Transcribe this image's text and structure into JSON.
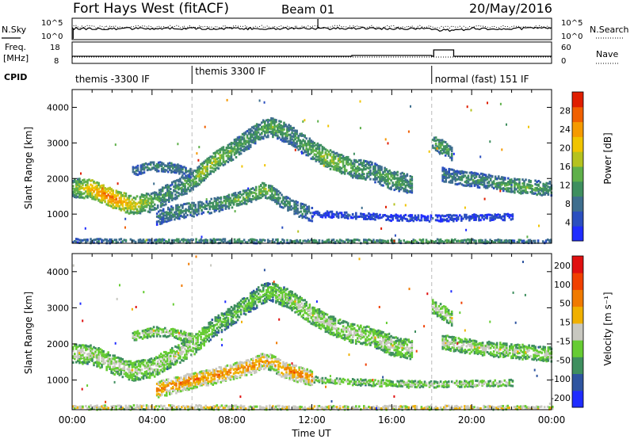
{
  "header": {
    "radar": "Fort Hays West (fitACF)",
    "beam": "Beam 01",
    "date": "20/May/2016"
  },
  "summary": {
    "nsky_label": "N.Sky",
    "nsearch_label": "N.Search",
    "noise_ticks": [
      "10^5",
      "10^0"
    ],
    "freq_label_line1": "Freq.",
    "freq_label_line2": "[MHz]",
    "freq_ticks": [
      "18",
      "8"
    ],
    "nave_label": "Nave",
    "nave_ticks": [
      "60",
      "0"
    ],
    "cpid_label": "CPID",
    "cpid_segments": [
      {
        "label": "themis -3300 IF",
        "start_h": 0,
        "end_h": 6
      },
      {
        "label": "themis 3300 IF",
        "start_h": 6,
        "end_h": 18
      },
      {
        "label": "normal (fast) 151 IF",
        "start_h": 18,
        "end_h": 24
      }
    ]
  },
  "chart_data": [
    {
      "type": "heatmap",
      "name": "power",
      "ylabel": "Slant Range [km]",
      "xlabel": "",
      "xlim": [
        0,
        24
      ],
      "ylim": [
        180,
        4500
      ],
      "yticks": [
        1000,
        2000,
        3000,
        4000
      ],
      "colorbar_label": "Power [dB]",
      "colorbar_ticks": [
        "4",
        "8",
        "12",
        "16",
        "20",
        "24",
        "28"
      ],
      "colorbar_colors": [
        "#1f2cff",
        "#2b4fbf",
        "#3e6e8e",
        "#3f8f5f",
        "#5fb04a",
        "#b5c21e",
        "#f0c400",
        "#f59a00",
        "#f06000",
        "#e01e00"
      ],
      "bands": [
        {
          "points": [
            [
              0,
              1750
            ],
            [
              1,
              1700
            ],
            [
              2,
              1450
            ],
            [
              3,
              1250
            ],
            [
              4,
              1350
            ],
            [
              5,
              1650
            ],
            [
              6,
              1950
            ],
            [
              6.5,
              2200
            ],
            [
              7,
              2450
            ],
            [
              8,
              2800
            ],
            [
              9,
              3200
            ],
            [
              9.5,
              3400
            ],
            [
              10,
              3450
            ],
            [
              11,
              3200
            ],
            [
              12,
              2800
            ],
            [
              13,
              2500
            ],
            [
              14,
              2300
            ],
            [
              15,
              2200
            ],
            [
              16,
              1950
            ],
            [
              17,
              1850
            ]
          ],
          "width": 260,
          "levels": [
            4,
            7,
            8,
            6,
            4,
            3,
            4,
            5,
            5,
            4,
            3,
            4,
            4,
            3,
            4,
            5,
            4,
            3,
            4,
            3
          ]
        },
        {
          "points": [
            [
              4.2,
              900
            ],
            [
              5,
              1050
            ],
            [
              6,
              1150
            ],
            [
              7,
              1250
            ],
            [
              8,
              1400
            ],
            [
              9,
              1550
            ],
            [
              9.5,
              1700
            ],
            [
              10,
              1600
            ],
            [
              10.5,
              1350
            ],
            [
              11.5,
              1100
            ],
            [
              12,
              1000
            ]
          ],
          "width": 200,
          "levels": [
            2,
            3,
            3,
            3,
            4,
            4,
            5,
            4,
            3,
            3,
            2
          ]
        },
        {
          "points": [
            [
              3,
              2200
            ],
            [
              4,
              2350
            ],
            [
              5,
              2300
            ],
            [
              6,
              2150
            ]
          ],
          "width": 120,
          "levels": [
            2,
            3,
            3,
            2
          ]
        },
        {
          "points": [
            [
              18,
              3050
            ],
            [
              18.5,
              2900
            ],
            [
              19,
              2700
            ]
          ],
          "width": 200,
          "levels": [
            3,
            4,
            3
          ]
        },
        {
          "points": [
            [
              18.5,
              2100
            ],
            [
              19.5,
              2000
            ],
            [
              21,
              1900
            ],
            [
              22,
              1800
            ],
            [
              23,
              1750
            ],
            [
              24,
              1700
            ]
          ],
          "width": 180,
          "levels": [
            2,
            3,
            3,
            4,
            4,
            3
          ]
        },
        {
          "points": [
            [
              12,
              1020
            ],
            [
              14,
              950
            ],
            [
              16,
              900
            ],
            [
              18,
              880
            ],
            [
              20,
              900
            ],
            [
              22,
              920
            ]
          ],
          "width": 70,
          "levels": [
            1,
            1,
            1,
            1,
            1,
            1
          ]
        },
        {
          "points": [
            [
              0,
              250
            ],
            [
              6,
              250
            ],
            [
              12,
              230
            ],
            [
              18,
              240
            ],
            [
              24,
              230
            ]
          ],
          "width": 60,
          "levels": [
            2,
            3,
            3,
            4,
            2
          ]
        }
      ]
    },
    {
      "type": "heatmap",
      "name": "velocity",
      "ylabel": "Slant Range [km]",
      "xlabel": "Time UT",
      "xlim": [
        0,
        24
      ],
      "ylim": [
        180,
        4500
      ],
      "xticks": [
        "00:00",
        "04:00",
        "08:00",
        "12:00",
        "16:00",
        "20:00",
        "00:00"
      ],
      "yticks": [
        1000,
        2000,
        3000,
        4000
      ],
      "colorbar_label": "Velocity [m s⁻¹]",
      "colorbar_ticks": [
        "200",
        "100",
        "50",
        "15",
        "-15",
        "-50",
        "-100",
        "-200"
      ],
      "colorbar_colors": [
        "#1f2cff",
        "#2f55a0",
        "#3f8f5f",
        "#66cc33",
        "#c8c8c0",
        "#f0b000",
        "#f07a00",
        "#f04000",
        "#e01010"
      ],
      "bands": [
        {
          "points": [
            [
              0,
              1750
            ],
            [
              1,
              1700
            ],
            [
              2,
              1450
            ],
            [
              3,
              1250
            ],
            [
              4,
              1350
            ],
            [
              5,
              1650
            ],
            [
              6,
              1950
            ],
            [
              6.5,
              2200
            ],
            [
              7,
              2450
            ],
            [
              8,
              2800
            ],
            [
              9,
              3200
            ],
            [
              9.5,
              3400
            ],
            [
              10,
              3450
            ],
            [
              11,
              3200
            ],
            [
              12,
              2800
            ],
            [
              13,
              2500
            ],
            [
              14,
              2300
            ],
            [
              15,
              2200
            ],
            [
              16,
              1950
            ],
            [
              17,
              1850
            ]
          ],
          "width": 260,
          "levels": [
            4,
            4,
            4,
            4,
            4,
            4,
            4,
            4,
            3,
            3,
            3,
            3,
            3,
            4,
            4,
            4,
            4,
            4,
            4,
            4
          ]
        },
        {
          "points": [
            [
              4.2,
              750
            ],
            [
              5,
              850
            ],
            [
              6,
              1000
            ],
            [
              7,
              1100
            ],
            [
              8,
              1250
            ],
            [
              9,
              1400
            ],
            [
              9.5,
              1550
            ],
            [
              10,
              1500
            ],
            [
              10.5,
              1300
            ],
            [
              11.5,
              1150
            ],
            [
              12,
              1050
            ]
          ],
          "width": 220,
          "levels": [
            6,
            6,
            6,
            6,
            6,
            6,
            6,
            5,
            6,
            6,
            6
          ]
        },
        {
          "points": [
            [
              3,
              2200
            ],
            [
              4,
              2350
            ],
            [
              5,
              2300
            ],
            [
              6,
              2150
            ]
          ],
          "width": 120,
          "levels": [
            4,
            4,
            4,
            4
          ]
        },
        {
          "points": [
            [
              18,
              3050
            ],
            [
              18.5,
              2900
            ],
            [
              19,
              2700
            ]
          ],
          "width": 200,
          "levels": [
            4,
            4,
            4
          ]
        },
        {
          "points": [
            [
              18.5,
              2050
            ],
            [
              19.5,
              1950
            ],
            [
              21,
              1850
            ],
            [
              22,
              1800
            ],
            [
              23,
              1750
            ],
            [
              24,
              1700
            ]
          ],
          "width": 180,
          "levels": [
            4,
            4,
            4,
            4,
            4,
            4
          ]
        },
        {
          "points": [
            [
              12,
              1020
            ],
            [
              14,
              950
            ],
            [
              16,
              900
            ],
            [
              18,
              880
            ],
            [
              20,
              900
            ],
            [
              22,
              920
            ]
          ],
          "width": 70,
          "levels": [
            4,
            4,
            4,
            4,
            4,
            4
          ]
        },
        {
          "points": [
            [
              0,
              250
            ],
            [
              6,
              250
            ],
            [
              12,
              230
            ],
            [
              18,
              240
            ],
            [
              24,
              230
            ]
          ],
          "width": 60,
          "levels": [
            5,
            5,
            5,
            5,
            5
          ]
        }
      ]
    }
  ]
}
